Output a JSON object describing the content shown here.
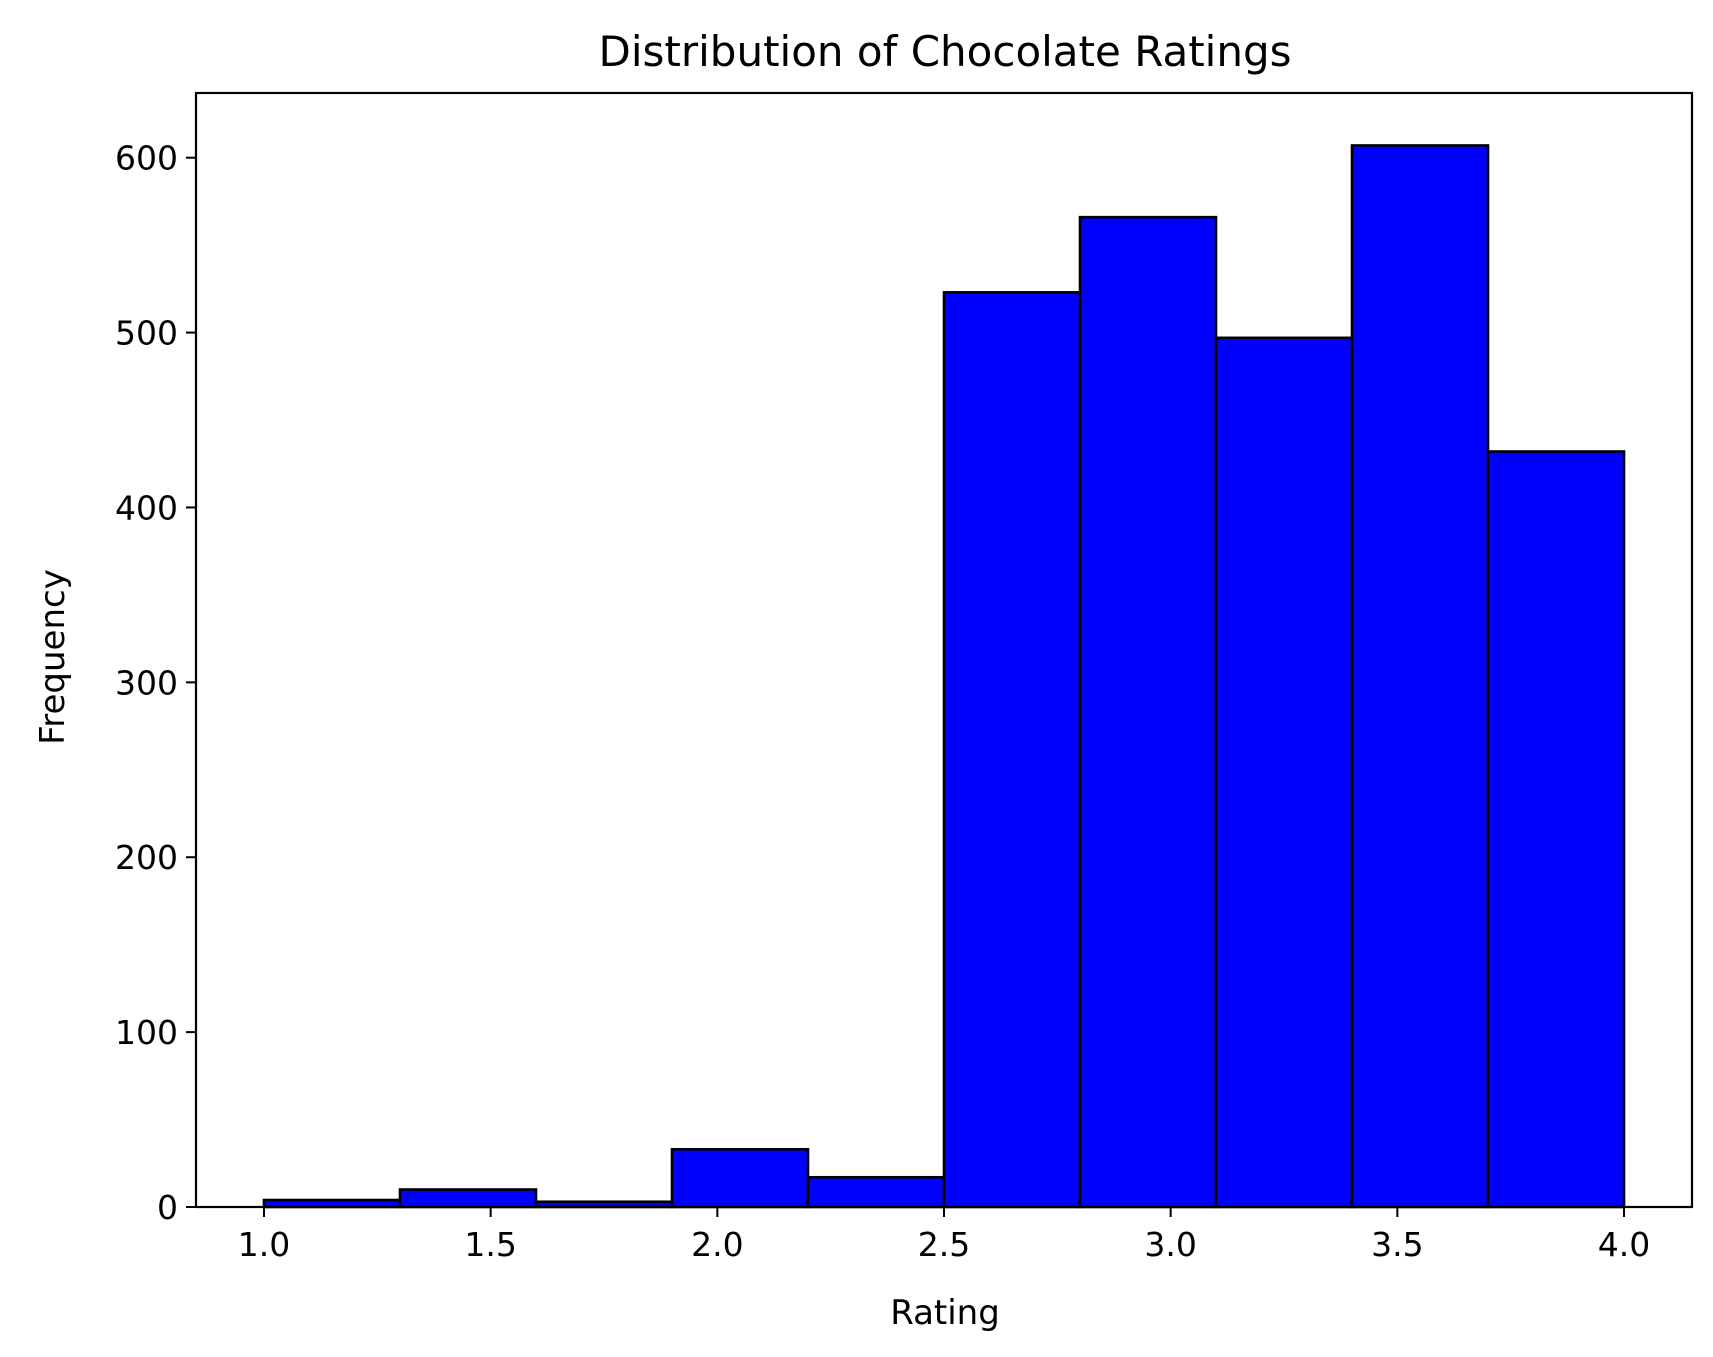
{
  "chart_data": {
    "type": "bar",
    "title": "Distribution of Chocolate Ratings",
    "xlabel": "Rating",
    "ylabel": "Frequency",
    "bins": [
      {
        "x0": 1.0,
        "x1": 1.3,
        "count": 4
      },
      {
        "x0": 1.3,
        "x1": 1.6,
        "count": 10
      },
      {
        "x0": 1.6,
        "x1": 1.9,
        "count": 3
      },
      {
        "x0": 1.9,
        "x1": 2.2,
        "count": 33
      },
      {
        "x0": 2.2,
        "x1": 2.5,
        "count": 17
      },
      {
        "x0": 2.5,
        "x1": 2.8,
        "count": 523
      },
      {
        "x0": 2.8,
        "x1": 3.1,
        "count": 566
      },
      {
        "x0": 3.1,
        "x1": 3.4,
        "count": 497
      },
      {
        "x0": 3.4,
        "x1": 3.7,
        "count": 607
      },
      {
        "x0": 3.7,
        "x1": 4.0,
        "count": 432
      }
    ],
    "xlim": [
      0.85,
      4.15
    ],
    "ylim": [
      0,
      637
    ],
    "xticks": [
      1.0,
      1.5,
      2.0,
      2.5,
      3.0,
      3.5,
      4.0
    ],
    "xtick_labels": [
      "1.0",
      "1.5",
      "2.0",
      "2.5",
      "3.0",
      "3.5",
      "4.0"
    ],
    "yticks": [
      0,
      100,
      200,
      300,
      400,
      500,
      600
    ],
    "ytick_labels": [
      "0",
      "100",
      "200",
      "300",
      "400",
      "500",
      "600"
    ],
    "bar_color": "#0000ff",
    "edge_color": "#000000",
    "grid": false,
    "legend": "none"
  }
}
